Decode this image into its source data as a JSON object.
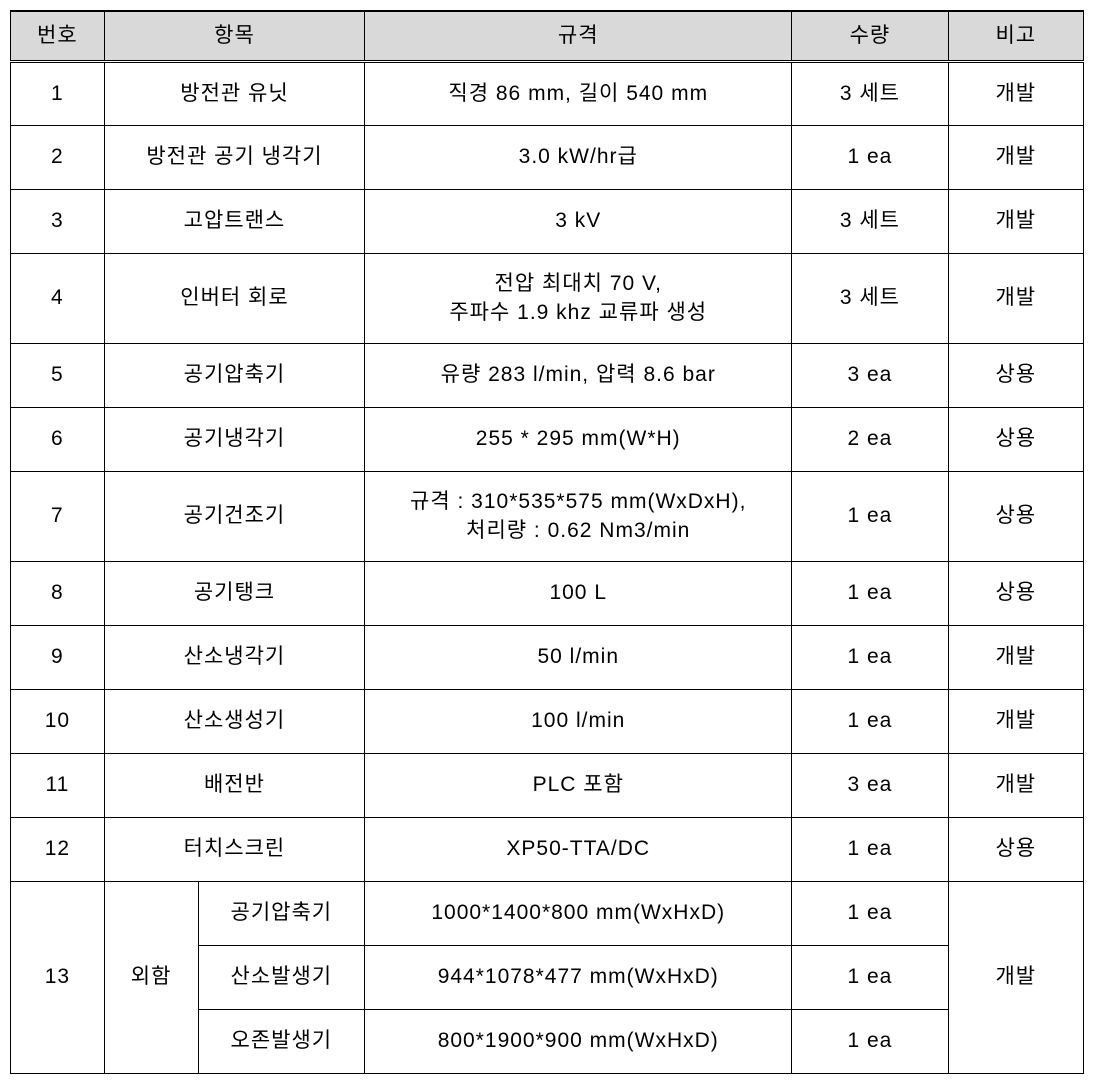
{
  "headers": {
    "num": "번호",
    "item": "항목",
    "spec": "규격",
    "qty": "수량",
    "note": "비고"
  },
  "rows": [
    {
      "num": "1",
      "item": "방전관 유닛",
      "spec": "직경 86 mm, 길이 540 mm",
      "qty": "3 세트",
      "note": "개발",
      "tall": false
    },
    {
      "num": "2",
      "item": "방전관 공기 냉각기",
      "spec": "3.0 kW/hr급",
      "qty": "1 ea",
      "note": "개발",
      "tall": false
    },
    {
      "num": "3",
      "item": "고압트랜스",
      "spec": "3 kV",
      "qty": "3 세트",
      "note": "개발",
      "tall": false
    },
    {
      "num": "4",
      "item": "인버터 회로",
      "spec": "전압 최대치 70 V,\n주파수 1.9 khz 교류파 생성",
      "qty": "3 세트",
      "note": "개발",
      "tall": true
    },
    {
      "num": "5",
      "item": "공기압축기",
      "spec": "유량 283 l/min, 압력 8.6 bar",
      "qty": "3 ea",
      "note": "상용",
      "tall": false
    },
    {
      "num": "6",
      "item": "공기냉각기",
      "spec": "255 * 295 mm(W*H)",
      "qty": "2 ea",
      "note": "상용",
      "tall": false
    },
    {
      "num": "7",
      "item": "공기건조기",
      "spec": "규격 : 310*535*575 mm(WxDxH),\n처리량 : 0.62 Nm3/min",
      "qty": "1 ea",
      "note": "상용",
      "tall": true
    },
    {
      "num": "8",
      "item": "공기탱크",
      "spec": "100 L",
      "qty": "1 ea",
      "note": "상용",
      "tall": false
    },
    {
      "num": "9",
      "item": "산소냉각기",
      "spec": "50 l/min",
      "qty": "1 ea",
      "note": "개발",
      "tall": false
    },
    {
      "num": "10",
      "item": "산소생성기",
      "spec": "100 l/min",
      "qty": "1 ea",
      "note": "개발",
      "tall": false
    },
    {
      "num": "11",
      "item": "배전반",
      "spec": "PLC 포함",
      "qty": "3 ea",
      "note": "개발",
      "tall": false
    },
    {
      "num": "12",
      "item": "터치스크린",
      "spec": "XP50-TTA/DC",
      "qty": "1 ea",
      "note": "상용",
      "tall": false
    }
  ],
  "row13": {
    "num": "13",
    "group": "외함",
    "note": "개발",
    "subs": [
      {
        "item": "공기압축기",
        "spec": "1000*1400*800 mm(WxHxD)",
        "qty": "1 ea"
      },
      {
        "item": "산소발생기",
        "spec": "944*1078*477 mm(WxHxD)",
        "qty": "1 ea"
      },
      {
        "item": "오존발생기",
        "spec": "800*1900*900 mm(WxHxD)",
        "qty": "1 ea"
      }
    ]
  },
  "colors": {
    "header_bg": "#d9d9d9",
    "border": "#000000",
    "background": "#ffffff",
    "text": "#000000"
  },
  "col_widths": {
    "num": 90,
    "item": 250,
    "spec": 410,
    "qty": 150,
    "note": 130
  }
}
